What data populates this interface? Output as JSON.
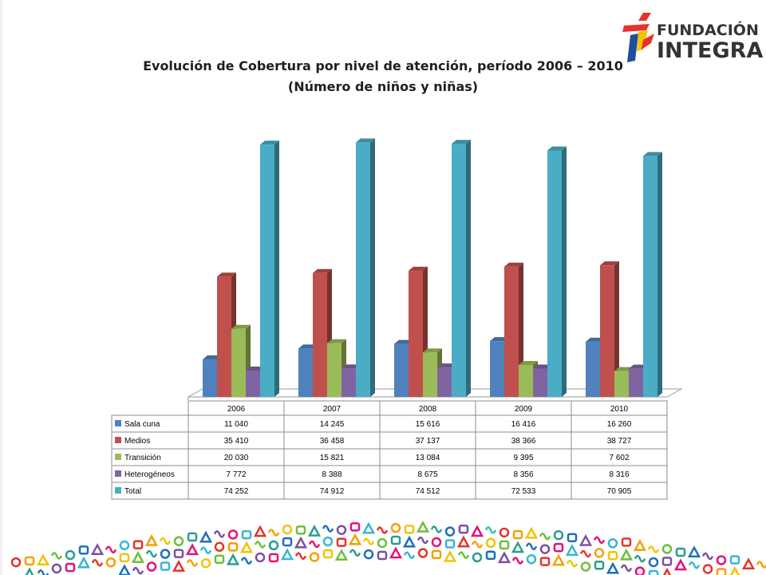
{
  "title": {
    "line1": "Evolución de Cobertura por nivel de atención, período 2006 – 2010",
    "line2": "(Número de niños y niñas)"
  },
  "logo": {
    "word1": "FUNDACIÓN",
    "word2": "INTEGRA"
  },
  "colors": {
    "sala_cuna": "#4f81bd",
    "medios": "#c0504d",
    "transicion": "#9bbb59",
    "heterogeneos": "#8064a2",
    "total": "#4bacc6"
  },
  "chart_data": {
    "type": "bar",
    "title": "Evolución de Cobertura por nivel de atención, período 2006 – 2010",
    "subtitle": "(Número de niños y niñas)",
    "categories": [
      "2006",
      "2007",
      "2008",
      "2009",
      "2010"
    ],
    "series": [
      {
        "name": "Sala cuna",
        "values": [
          11040,
          14245,
          15616,
          16416,
          16260
        ],
        "labels": [
          "11 040",
          "14 245",
          "15 616",
          "16 416",
          "16 260"
        ]
      },
      {
        "name": "Medios",
        "values": [
          35410,
          36458,
          37137,
          38366,
          38727
        ],
        "labels": [
          "35 410",
          "36 458",
          "37 137",
          "38 366",
          "38 727"
        ]
      },
      {
        "name": "Transición",
        "values": [
          20030,
          15821,
          13084,
          9395,
          7602
        ],
        "labels": [
          "20 030",
          "15 821",
          "13 084",
          "9 395",
          "7 602"
        ]
      },
      {
        "name": "Heterogéneos",
        "values": [
          7772,
          8388,
          8675,
          8356,
          8316
        ],
        "labels": [
          "7 772",
          "8 388",
          "8 675",
          "8 356",
          "8 316"
        ]
      },
      {
        "name": "Total",
        "values": [
          74252,
          74912,
          74512,
          72533,
          70905
        ],
        "labels": [
          "74 252",
          "74 912",
          "74 512",
          "72 533",
          "70 905"
        ]
      }
    ],
    "ylim": [
      0,
      75000
    ],
    "grid": false,
    "legend": "data-table-below",
    "style": "3d-clustered-columns"
  }
}
